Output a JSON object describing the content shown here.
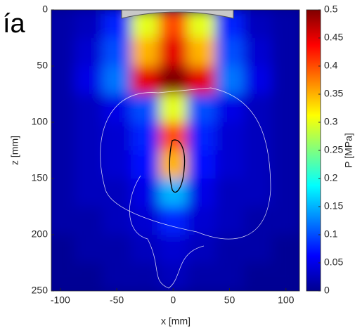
{
  "chart_data": {
    "type": "heatmap",
    "annotations": [
      "ía"
    ],
    "xlabel": "x [mm]",
    "ylabel": "z [mm]",
    "colorbar_label": "P [MPa]",
    "x": [
      -100,
      -75,
      -50,
      -25,
      0,
      25,
      50,
      75,
      100
    ],
    "y": [
      12.5,
      37.5,
      62.5,
      87.5,
      112.5,
      137.5,
      162.5,
      187.5,
      212.5,
      237.5
    ],
    "values": [
      [
        0.02,
        0.03,
        0.08,
        0.3,
        0.4,
        0.3,
        0.08,
        0.03,
        0.02
      ],
      [
        0.02,
        0.04,
        0.1,
        0.35,
        0.45,
        0.35,
        0.1,
        0.04,
        0.02
      ],
      [
        0.02,
        0.05,
        0.12,
        0.45,
        0.5,
        0.45,
        0.12,
        0.05,
        0.02
      ],
      [
        0.02,
        0.03,
        0.05,
        0.1,
        0.3,
        0.1,
        0.05,
        0.03,
        0.02
      ],
      [
        0.02,
        0.03,
        0.04,
        0.08,
        0.4,
        0.08,
        0.04,
        0.03,
        0.02
      ],
      [
        0.02,
        0.03,
        0.04,
        0.07,
        0.35,
        0.07,
        0.04,
        0.03,
        0.02
      ],
      [
        0.02,
        0.03,
        0.03,
        0.05,
        0.15,
        0.05,
        0.03,
        0.03,
        0.02
      ],
      [
        0.02,
        0.02,
        0.03,
        0.04,
        0.08,
        0.04,
        0.03,
        0.02,
        0.02
      ],
      [
        0.01,
        0.02,
        0.02,
        0.03,
        0.04,
        0.03,
        0.02,
        0.02,
        0.01
      ],
      [
        0.01,
        0.01,
        0.02,
        0.02,
        0.03,
        0.02,
        0.02,
        0.01,
        0.01
      ]
    ],
    "xlim": [
      -108,
      112
    ],
    "ylim": [
      250,
      0
    ],
    "xticks": [
      -100,
      -50,
      0,
      50,
      100
    ],
    "yticks": [
      0,
      50,
      100,
      150,
      200,
      250
    ],
    "clim": [
      0,
      0.5
    ],
    "cticks": [
      0,
      0.05,
      0.1,
      0.15,
      0.2,
      0.25,
      0.3,
      0.35,
      0.4,
      0.45,
      0.5
    ],
    "colormap": "jet"
  }
}
